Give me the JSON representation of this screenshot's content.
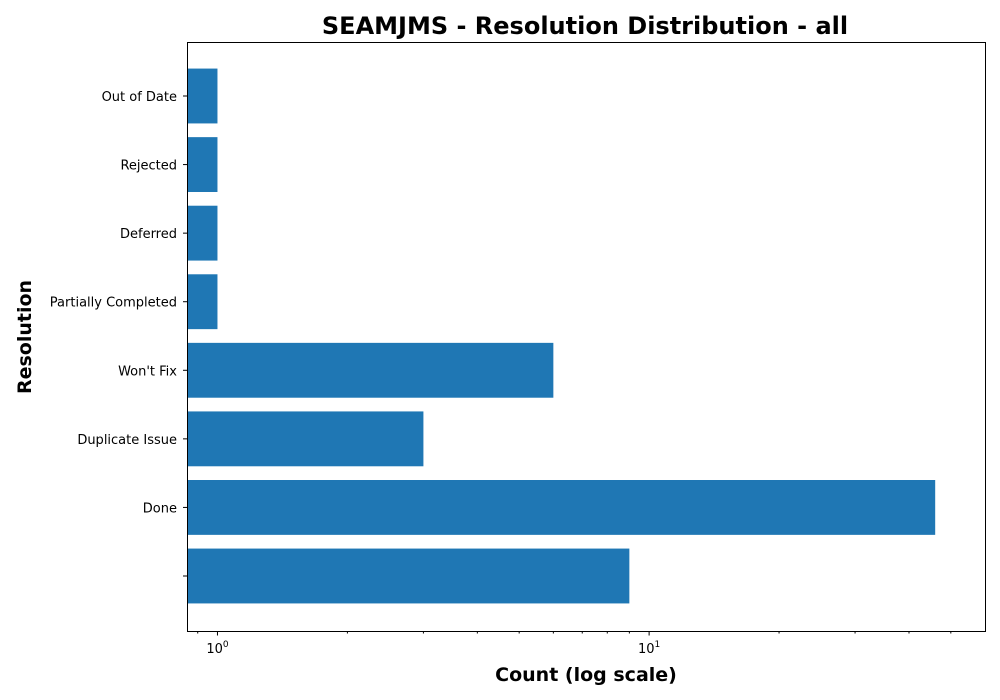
{
  "chart_data": {
    "type": "bar",
    "orientation": "horizontal",
    "title": "SEAMJMS - Resolution Distribution - all",
    "xlabel": "Count (log scale)",
    "ylabel": "Resolution",
    "xscale": "log",
    "xlim": [
      0.85,
      60
    ],
    "categories": [
      "",
      "Done",
      "Duplicate Issue",
      "Won't Fix",
      "Partially Completed",
      "Deferred",
      "Rejected",
      "Out of Date"
    ],
    "values": [
      9,
      46,
      3,
      6,
      1,
      1,
      1,
      1
    ],
    "x_ticks": [
      {
        "value": 1,
        "base": "10",
        "exp": "0"
      },
      {
        "value": 10,
        "base": "10",
        "exp": "1"
      }
    ],
    "color": "#1f77b4",
    "grid": false,
    "legend": "none"
  }
}
